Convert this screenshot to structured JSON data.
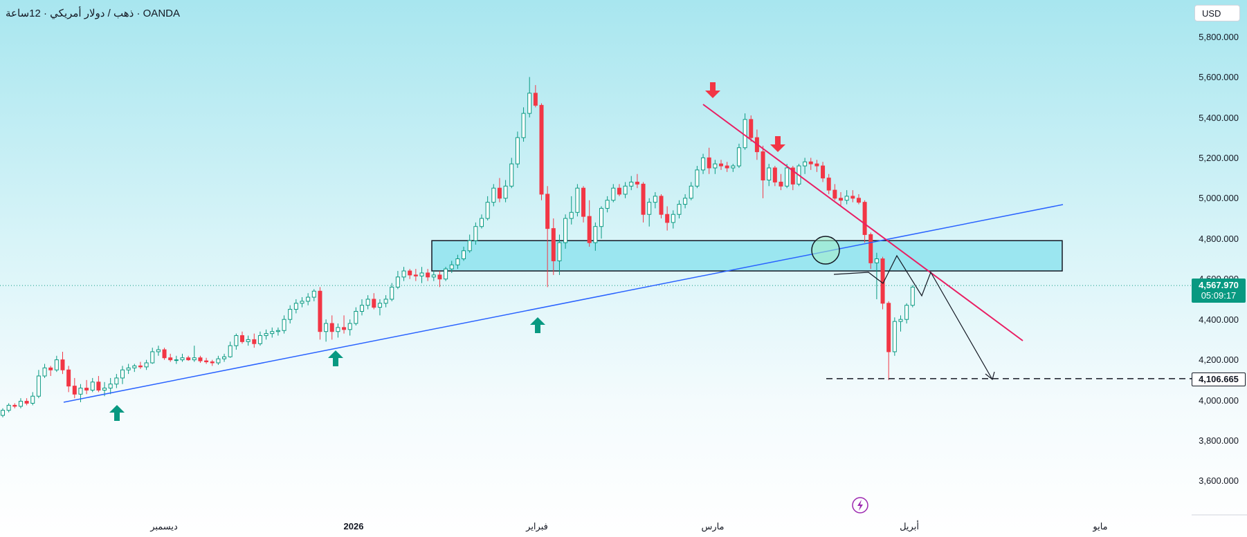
{
  "header": {
    "symbol_label": "ذهب / دولار أمريكي · 12ساعة · OANDA",
    "currency_label": "USD"
  },
  "price_axis": {
    "ticks": [
      "5,800.000",
      "5,600.000",
      "5,400.000",
      "5,200.000",
      "5,000.000",
      "4,800.000",
      "4,600.000",
      "4,400.000",
      "4,200.000",
      "4,000.000",
      "3,800.000",
      "3,600.000"
    ],
    "current_price": "4,567.970",
    "countdown": "05:09:17",
    "target_price": "4,106.665"
  },
  "time_axis": {
    "labels": [
      "ديسمبر",
      "2026",
      "فبراير",
      "مارس",
      "أبريل",
      "مايو"
    ]
  },
  "colors": {
    "up": "#089981",
    "down": "#f23645",
    "trendline_up": "#2962ff",
    "trendline_down": "#e91e63",
    "zone_fill": "#8fe3ee",
    "arrow_up": "#089981",
    "arrow_down": "#f23645",
    "event_icon": "#9c27b0"
  },
  "chart_data": {
    "type": "candlestick",
    "ylim": [
      3500,
      5870
    ],
    "y_ticks": [
      5800,
      5600,
      5400,
      5200,
      5000,
      4800,
      4600,
      4400,
      4200,
      4000,
      3800,
      3600
    ],
    "current_price": 4567.97,
    "target_price": 4106.665,
    "candles": [
      [
        3925,
        3960,
        3915,
        3950
      ],
      [
        3950,
        3985,
        3940,
        3975
      ],
      [
        3975,
        3985,
        3960,
        3970
      ],
      [
        3970,
        4010,
        3960,
        3995
      ],
      [
        3995,
        4010,
        3975,
        3985
      ],
      [
        3985,
        4040,
        3975,
        4020
      ],
      [
        4020,
        4150,
        4010,
        4120
      ],
      [
        4120,
        4180,
        4110,
        4160
      ],
      [
        4160,
        4170,
        4120,
        4150
      ],
      [
        4150,
        4220,
        4140,
        4200
      ],
      [
        4200,
        4240,
        4130,
        4150
      ],
      [
        4150,
        4170,
        4040,
        4070
      ],
      [
        4070,
        4110,
        4010,
        4030
      ],
      [
        4030,
        4080,
        3990,
        4060
      ],
      [
        4060,
        4100,
        4030,
        4050
      ],
      [
        4050,
        4110,
        4040,
        4090
      ],
      [
        4090,
        4120,
        4040,
        4050
      ],
      [
        4050,
        4090,
        4020,
        4060
      ],
      [
        4060,
        4110,
        4030,
        4080
      ],
      [
        4080,
        4130,
        4060,
        4110
      ],
      [
        4110,
        4170,
        4080,
        4150
      ],
      [
        4150,
        4180,
        4130,
        4160
      ],
      [
        4160,
        4180,
        4140,
        4170
      ],
      [
        4170,
        4190,
        4155,
        4165
      ],
      [
        4165,
        4200,
        4150,
        4185
      ],
      [
        4185,
        4260,
        4180,
        4240
      ],
      [
        4240,
        4270,
        4220,
        4250
      ],
      [
        4250,
        4260,
        4200,
        4210
      ],
      [
        4210,
        4230,
        4190,
        4200
      ],
      [
        4200,
        4220,
        4180,
        4200
      ],
      [
        4200,
        4230,
        4190,
        4210
      ],
      [
        4210,
        4220,
        4195,
        4200
      ],
      [
        4200,
        4270,
        4190,
        4210
      ],
      [
        4210,
        4220,
        4185,
        4195
      ],
      [
        4195,
        4210,
        4180,
        4190
      ],
      [
        4190,
        4200,
        4170,
        4185
      ],
      [
        4185,
        4220,
        4175,
        4205
      ],
      [
        4205,
        4230,
        4190,
        4215
      ],
      [
        4215,
        4290,
        4210,
        4270
      ],
      [
        4270,
        4330,
        4250,
        4320
      ],
      [
        4320,
        4340,
        4280,
        4290
      ],
      [
        4290,
        4320,
        4270,
        4300
      ],
      [
        4300,
        4330,
        4260,
        4280
      ],
      [
        4280,
        4340,
        4270,
        4320
      ],
      [
        4320,
        4350,
        4300,
        4330
      ],
      [
        4330,
        4360,
        4310,
        4340
      ],
      [
        4340,
        4360,
        4320,
        4345
      ],
      [
        4345,
        4420,
        4330,
        4400
      ],
      [
        4400,
        4470,
        4380,
        4450
      ],
      [
        4450,
        4500,
        4430,
        4480
      ],
      [
        4480,
        4510,
        4460,
        4490
      ],
      [
        4490,
        4530,
        4470,
        4510
      ],
      [
        4510,
        4550,
        4490,
        4540
      ],
      [
        4540,
        4560,
        4300,
        4340
      ],
      [
        4340,
        4400,
        4290,
        4380
      ],
      [
        4380,
        4420,
        4300,
        4340
      ],
      [
        4340,
        4380,
        4310,
        4360
      ],
      [
        4360,
        4420,
        4330,
        4350
      ],
      [
        4350,
        4400,
        4320,
        4380
      ],
      [
        4380,
        4460,
        4370,
        4440
      ],
      [
        4440,
        4500,
        4420,
        4470
      ],
      [
        4470,
        4520,
        4450,
        4500
      ],
      [
        4500,
        4530,
        4450,
        4460
      ],
      [
        4460,
        4500,
        4420,
        4480
      ],
      [
        4480,
        4520,
        4460,
        4500
      ],
      [
        4500,
        4580,
        4490,
        4560
      ],
      [
        4560,
        4640,
        4550,
        4610
      ],
      [
        4610,
        4660,
        4590,
        4640
      ],
      [
        4640,
        4650,
        4600,
        4620
      ],
      [
        4620,
        4650,
        4590,
        4615
      ],
      [
        4615,
        4660,
        4580,
        4630
      ],
      [
        4630,
        4650,
        4590,
        4610
      ],
      [
        4610,
        4640,
        4590,
        4620
      ],
      [
        4620,
        4640,
        4560,
        4600
      ],
      [
        4600,
        4660,
        4590,
        4650
      ],
      [
        4650,
        4690,
        4630,
        4670
      ],
      [
        4670,
        4720,
        4650,
        4700
      ],
      [
        4700,
        4760,
        4690,
        4740
      ],
      [
        4740,
        4820,
        4730,
        4790
      ],
      [
        4790,
        4880,
        4770,
        4860
      ],
      [
        4860,
        4920,
        4850,
        4900
      ],
      [
        4900,
        5010,
        4890,
        4980
      ],
      [
        4980,
        5070,
        4960,
        5050
      ],
      [
        5050,
        5100,
        4980,
        5000
      ],
      [
        5000,
        5090,
        4980,
        5060
      ],
      [
        5060,
        5200,
        5050,
        5170
      ],
      [
        5170,
        5330,
        5150,
        5300
      ],
      [
        5300,
        5450,
        5280,
        5420
      ],
      [
        5420,
        5600,
        5400,
        5520
      ],
      [
        5520,
        5560,
        5450,
        5460
      ],
      [
        5460,
        5470,
        4990,
        5020
      ],
      [
        5020,
        5060,
        4560,
        4850
      ],
      [
        4850,
        4900,
        4620,
        4690
      ],
      [
        4690,
        4820,
        4620,
        4780
      ],
      [
        4780,
        4920,
        4750,
        4900
      ],
      [
        4900,
        5010,
        4870,
        4930
      ],
      [
        4930,
        5070,
        4910,
        5050
      ],
      [
        5050,
        5060,
        4880,
        4910
      ],
      [
        4910,
        4990,
        4760,
        4780
      ],
      [
        4780,
        4880,
        4740,
        4860
      ],
      [
        4860,
        4960,
        4800,
        4950
      ],
      [
        4950,
        5010,
        4930,
        4990
      ],
      [
        4990,
        5070,
        4980,
        5050
      ],
      [
        5050,
        5070,
        5010,
        5020
      ],
      [
        5020,
        5080,
        5000,
        5060
      ],
      [
        5060,
        5110,
        5040,
        5080
      ],
      [
        5080,
        5120,
        5050,
        5070
      ],
      [
        5070,
        5080,
        4880,
        4920
      ],
      [
        4920,
        5000,
        4860,
        4980
      ],
      [
        4980,
        5030,
        4950,
        5010
      ],
      [
        5010,
        5020,
        4900,
        4920
      ],
      [
        4920,
        4960,
        4840,
        4880
      ],
      [
        4880,
        4940,
        4850,
        4920
      ],
      [
        4920,
        4990,
        4900,
        4970
      ],
      [
        4970,
        5020,
        4950,
        5000
      ],
      [
        5000,
        5080,
        4990,
        5060
      ],
      [
        5060,
        5160,
        5050,
        5140
      ],
      [
        5140,
        5220,
        5120,
        5200
      ],
      [
        5200,
        5250,
        5120,
        5150
      ],
      [
        5150,
        5190,
        5120,
        5170
      ],
      [
        5170,
        5190,
        5140,
        5160
      ],
      [
        5160,
        5180,
        5130,
        5150
      ],
      [
        5150,
        5170,
        5130,
        5160
      ],
      [
        5160,
        5270,
        5150,
        5250
      ],
      [
        5250,
        5420,
        5240,
        5390
      ],
      [
        5390,
        5410,
        5280,
        5300
      ],
      [
        5300,
        5340,
        5190,
        5230
      ],
      [
        5230,
        5260,
        5000,
        5090
      ],
      [
        5090,
        5170,
        5060,
        5150
      ],
      [
        5150,
        5160,
        5060,
        5080
      ],
      [
        5080,
        5120,
        5040,
        5060
      ],
      [
        5060,
        5170,
        5050,
        5150
      ],
      [
        5150,
        5160,
        5040,
        5070
      ],
      [
        5070,
        5170,
        5060,
        5160
      ],
      [
        5160,
        5200,
        5120,
        5180
      ],
      [
        5180,
        5200,
        5140,
        5170
      ],
      [
        5170,
        5190,
        5130,
        5160
      ],
      [
        5160,
        5180,
        5080,
        5100
      ],
      [
        5100,
        5120,
        5020,
        5040
      ],
      [
        5040,
        5070,
        4990,
        5000
      ],
      [
        5000,
        5030,
        4960,
        4990
      ],
      [
        4990,
        5040,
        4970,
        5010
      ],
      [
        5010,
        5040,
        4980,
        5000
      ],
      [
        5000,
        5020,
        4970,
        4980
      ],
      [
        4980,
        4990,
        4780,
        4820
      ],
      [
        4820,
        4830,
        4650,
        4680
      ],
      [
        4680,
        4730,
        4500,
        4700
      ],
      [
        4700,
        4710,
        4450,
        4480
      ],
      [
        4480,
        4490,
        4100,
        4240
      ],
      [
        4240,
        4410,
        4220,
        4390
      ],
      [
        4390,
        4420,
        4340,
        4400
      ],
      [
        4400,
        4480,
        4380,
        4470
      ],
      [
        4470,
        4570,
        4460,
        4560
      ]
    ],
    "support_zone": [
      4640,
      4790
    ],
    "annotations": [
      {
        "kind": "up-arrow",
        "label": "support-touch-1"
      },
      {
        "kind": "up-arrow",
        "label": "support-touch-2"
      },
      {
        "kind": "up-arrow",
        "label": "support-touch-3"
      },
      {
        "kind": "down-arrow",
        "label": "resistance-touch-1"
      },
      {
        "kind": "down-arrow",
        "label": "resistance-touch-2"
      },
      {
        "kind": "circle",
        "label": "breakdown-point"
      }
    ]
  }
}
